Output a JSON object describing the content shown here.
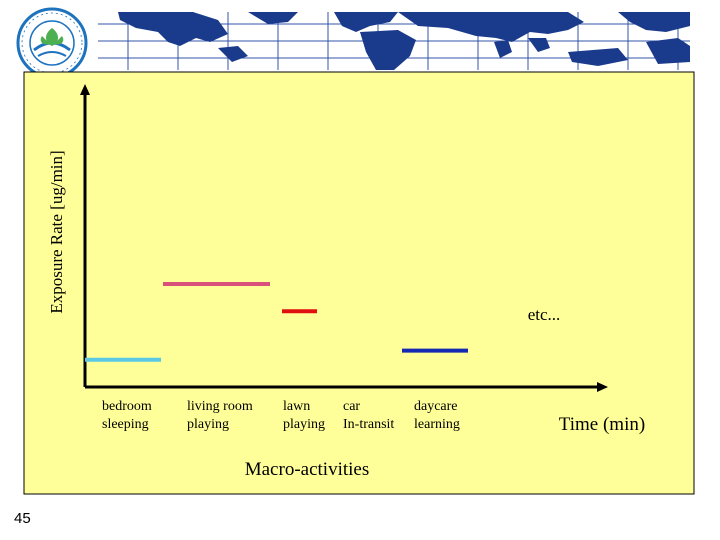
{
  "slide": {
    "number": "45"
  },
  "logo": {
    "name": "epa-seal-logo"
  },
  "banner": {
    "name": "world-map-banner"
  },
  "colors": {
    "panel_background": "#FFFF99",
    "panel_border": "#000000",
    "axis": "#000000",
    "banner_ocean": "#FFFFFF",
    "banner_land": "#1A3A8C",
    "banner_grid": "#3355AA"
  },
  "chart_data": {
    "type": "line",
    "title": "",
    "ylabel": "Exposure Rate [ug/min]",
    "xlabel": "Time (min)",
    "xgroup_label": "Macro-activities",
    "annotation": "etc...",
    "grid": false,
    "y_ticks": false,
    "categories": [
      {
        "location": "bedroom",
        "activity": "sleeping"
      },
      {
        "location": "living room",
        "activity": "playing"
      },
      {
        "location": "lawn",
        "activity": "playing"
      },
      {
        "location": "car",
        "activity": "In-transit"
      },
      {
        "location": "daycare",
        "activity": "learning"
      }
    ],
    "segments": [
      {
        "category": "bedroom",
        "level": 0.09,
        "color": "#5BC8E6"
      },
      {
        "category": "living room",
        "level": 0.34,
        "color": "#D9507A"
      },
      {
        "category": "lawn",
        "level": 0.25,
        "color": "#E01010"
      },
      {
        "category": "car",
        "level": null,
        "color": ""
      },
      {
        "category": "daycare",
        "level": 0.12,
        "color": "#1428B4"
      }
    ]
  }
}
